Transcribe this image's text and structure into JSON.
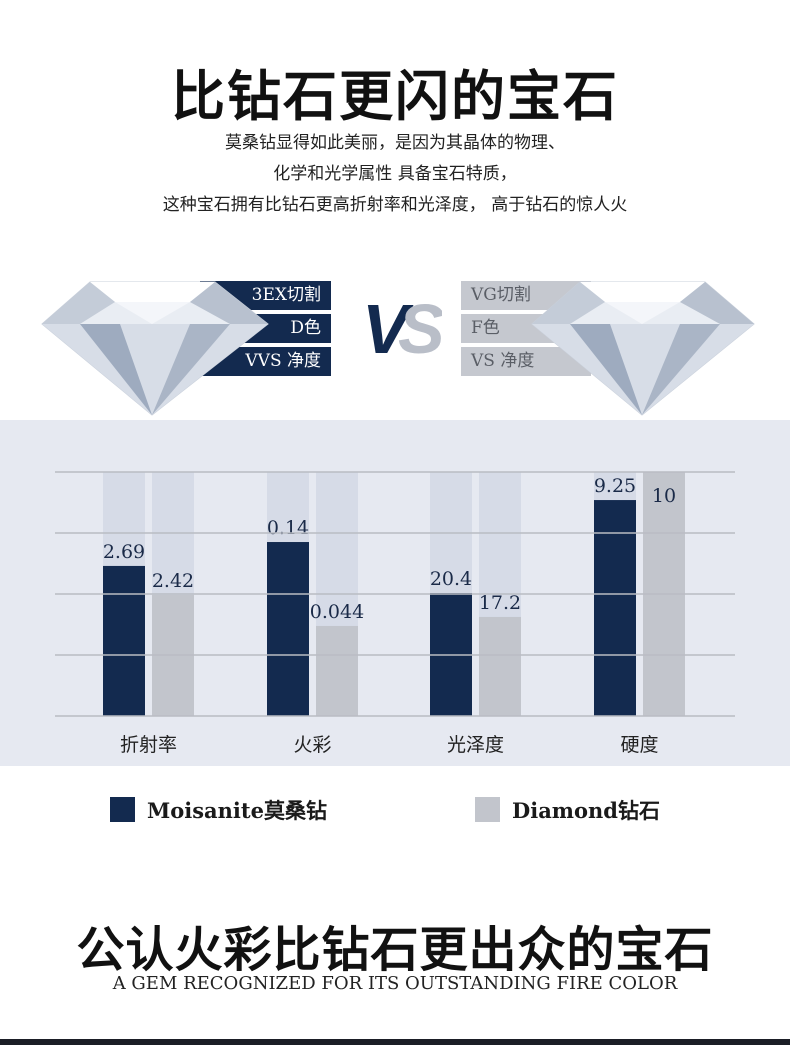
{
  "header": {
    "title": "比钻石更闪的宝石",
    "lines": [
      "莫桑钻显得如此美丽，是因为其晶体的物理、",
      "化学和光学属性 具备宝石特质，",
      "这种宝石拥有比钻石更高折射率和光泽度，  高于钻石的惊人火"
    ]
  },
  "comparison": {
    "left_tags": [
      "3EX切割",
      "D色",
      "VVS 净度"
    ],
    "vs": [
      "V",
      "S"
    ],
    "right_tags": [
      "VG切割",
      "F色",
      "VS 净度"
    ]
  },
  "colors": {
    "moissanite": "#132a4f",
    "diamond": "#c2c5cc",
    "track": "#d6dbe7",
    "panel": "#e6e9f1"
  },
  "chart_data": {
    "type": "bar",
    "categories": [
      "折射率",
      "火彩",
      "光泽度",
      "硬度"
    ],
    "series": [
      {
        "name": "Moisanite莫桑钻",
        "values": [
          2.69,
          0.14,
          20.4,
          9.25
        ],
        "labels": [
          "2.69",
          "0.14",
          "20.4",
          "9.25"
        ],
        "fill": [
          0.615,
          0.713,
          0.504,
          0.885
        ]
      },
      {
        "name": "Diamond钻石",
        "values": [
          2.42,
          0.044,
          17.2,
          10
        ],
        "labels": [
          "2.42",
          "0.044",
          "17.2",
          "10"
        ],
        "fill": [
          0.496,
          0.369,
          0.406,
          1.0
        ]
      }
    ],
    "grid": true,
    "legend": "bottom"
  },
  "footer": {
    "title": "公认火彩比钻石更出众的宝石",
    "subtitle": "A GEM RECOGNIZED FOR ITS OUTSTANDING FIRE COLOR"
  }
}
